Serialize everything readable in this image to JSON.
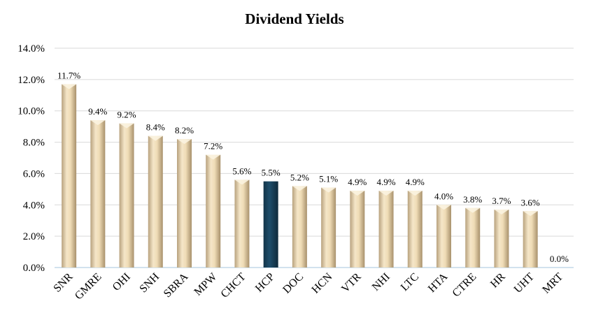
{
  "chart_data": {
    "type": "bar",
    "title": "Dividend Yields",
    "xlabel": "",
    "ylabel": "",
    "ylim": [
      0,
      14
    ],
    "yticks": [
      "0.0%",
      "2.0%",
      "4.0%",
      "6.0%",
      "8.0%",
      "10.0%",
      "12.0%",
      "14.0%"
    ],
    "grid": true,
    "legend": "none",
    "categories": [
      "SNR",
      "GMRE",
      "OHI",
      "SNH",
      "SBRA",
      "MPW",
      "CHCT",
      "HCP",
      "DOC",
      "HCN",
      "VTR",
      "NHI",
      "LTC",
      "HTA",
      "CTRE",
      "HR",
      "UHT",
      "MRT"
    ],
    "values": [
      11.7,
      9.4,
      9.2,
      8.4,
      8.2,
      7.2,
      5.6,
      5.5,
      5.2,
      5.1,
      4.9,
      4.9,
      4.9,
      4.0,
      3.8,
      3.7,
      3.6,
      0.0
    ],
    "data_labels": [
      "11.7%",
      "9.4%",
      "9.2%",
      "8.4%",
      "8.2%",
      "7.2%",
      "5.6%",
      "5.5%",
      "5.2%",
      "5.1%",
      "4.9%",
      "4.9%",
      "4.9%",
      "4.0%",
      "3.8%",
      "3.7%",
      "3.6%",
      "0.0%"
    ],
    "highlight_category": "HCP",
    "colors": {
      "bar_light": "#f5e6c8",
      "bar_dark": "#b8a27e",
      "bar_top": "#fbf3e0",
      "highlight": "#1f4e6b",
      "highlight_dark": "#123449",
      "grid": "#d9d9d9",
      "axis": "#a6c4dc"
    }
  }
}
